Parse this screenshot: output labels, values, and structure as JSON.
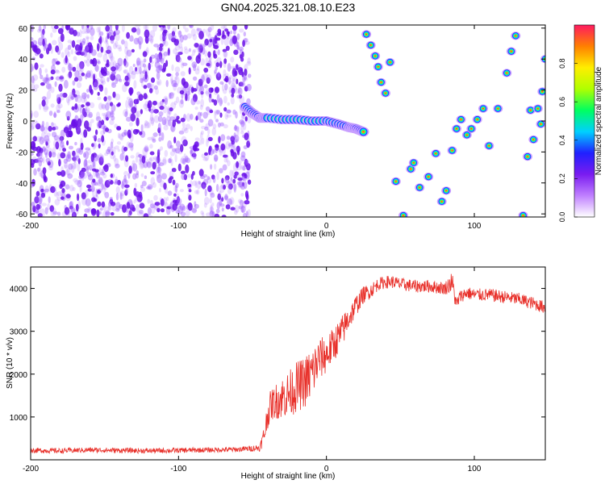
{
  "title": "GN04.2025.321.08.10.E23",
  "colors": {
    "noise": "#7a2cf0",
    "snr_line": "#e8302a",
    "frame": "#000000"
  },
  "chart_data": [
    {
      "type": "heatmap",
      "xlabel": "Height of straight line (km)",
      "ylabel": "Frequency (Hz)",
      "xlim": [
        -200,
        148
      ],
      "ylim": [
        -62,
        62
      ],
      "x_ticks": [
        -200,
        -100,
        0,
        100
      ],
      "y_ticks": [
        -60,
        -40,
        -20,
        0,
        20,
        40,
        60
      ],
      "colorbar": {
        "label": "Normalized spectral amplitude",
        "range": [
          0.0,
          1.0
        ],
        "ticks": [
          "0.0",
          "0.2",
          "0.4",
          "0.6",
          "0.8"
        ],
        "colormap": [
          "#ffffff",
          "#c080ff",
          "#7a1cf0",
          "#2020ff",
          "#00d0ff",
          "#00ff60",
          "#b0ff00",
          "#ffee00",
          "#ff8000",
          "#ff1a60"
        ]
      },
      "noise_region_x": [
        -200,
        -52
      ],
      "main_track": [
        {
          "x": -55,
          "y": 9
        },
        {
          "x": -50,
          "y": 5
        },
        {
          "x": -45,
          "y": 2
        },
        {
          "x": -40,
          "y": 2
        },
        {
          "x": -30,
          "y": 1
        },
        {
          "x": -20,
          "y": 1
        },
        {
          "x": -10,
          "y": 0
        },
        {
          "x": 0,
          "y": 0
        },
        {
          "x": 8,
          "y": -2
        },
        {
          "x": 15,
          "y": -4
        },
        {
          "x": 20,
          "y": -5
        },
        {
          "x": 25,
          "y": -7
        }
      ],
      "scattered_blobs": [
        {
          "x": 27,
          "y": 56
        },
        {
          "x": 30,
          "y": 49
        },
        {
          "x": 33,
          "y": 42
        },
        {
          "x": 35,
          "y": 35
        },
        {
          "x": 37,
          "y": 25
        },
        {
          "x": 40,
          "y": 18
        },
        {
          "x": 43,
          "y": 38
        },
        {
          "x": 47,
          "y": -39
        },
        {
          "x": 52,
          "y": -61
        },
        {
          "x": 57,
          "y": -31
        },
        {
          "x": 59,
          "y": -27
        },
        {
          "x": 63,
          "y": -43
        },
        {
          "x": 69,
          "y": -36
        },
        {
          "x": 74,
          "y": -21
        },
        {
          "x": 78,
          "y": -52
        },
        {
          "x": 81,
          "y": -45
        },
        {
          "x": 85,
          "y": -19
        },
        {
          "x": 88,
          "y": -5
        },
        {
          "x": 91,
          "y": 1
        },
        {
          "x": 95,
          "y": -9
        },
        {
          "x": 98,
          "y": -5
        },
        {
          "x": 102,
          "y": 1
        },
        {
          "x": 106,
          "y": 8
        },
        {
          "x": 110,
          "y": -16
        },
        {
          "x": 116,
          "y": 8
        },
        {
          "x": 122,
          "y": 31
        },
        {
          "x": 125,
          "y": 45
        },
        {
          "x": 128,
          "y": 55
        },
        {
          "x": 133,
          "y": -61
        },
        {
          "x": 136,
          "y": -23
        },
        {
          "x": 138,
          "y": 7
        },
        {
          "x": 140,
          "y": -12
        },
        {
          "x": 143,
          "y": 8
        },
        {
          "x": 146,
          "y": 19
        },
        {
          "x": 148,
          "y": 40
        },
        {
          "x": 145,
          "y": -2
        }
      ]
    },
    {
      "type": "line",
      "xlabel": "Height of straight line (km)",
      "ylabel": "SNR (10 * v/v)",
      "xlim": [
        -200,
        148
      ],
      "ylim": [
        0,
        4500
      ],
      "x_ticks": [
        -200,
        -100,
        0,
        100
      ],
      "y_ticks": [
        1000,
        2000,
        3000,
        4000
      ],
      "series": [
        {
          "x": [
            -200,
            -180,
            -160,
            -140,
            -120,
            -100,
            -80,
            -60,
            -45,
            -42,
            -40,
            -38,
            -35,
            -30,
            -25,
            -20,
            -15,
            -10,
            -5,
            0,
            5,
            10,
            15,
            20,
            25,
            30,
            35,
            40,
            45,
            50,
            60,
            70,
            80,
            85,
            88,
            90,
            95,
            100,
            110,
            120,
            130,
            140,
            148
          ],
          "y": [
            220,
            210,
            230,
            220,
            210,
            220,
            230,
            240,
            280,
            600,
            1000,
            1250,
            1350,
            1450,
            1550,
            1700,
            1800,
            2000,
            2350,
            2450,
            2700,
            2950,
            3300,
            3600,
            3850,
            3950,
            4100,
            4150,
            4150,
            4100,
            4050,
            4050,
            4000,
            4150,
            3600,
            3800,
            3900,
            3850,
            3850,
            3800,
            3750,
            3650,
            3550
          ],
          "noise_amplitude": [
            60,
            60,
            60,
            60,
            60,
            60,
            60,
            60,
            80,
            250,
            300,
            350,
            400,
            500,
            550,
            600,
            600,
            650,
            500,
            450,
            400,
            400,
            300,
            250,
            200,
            180,
            150,
            150,
            150,
            150,
            150,
            150,
            150,
            250,
            180,
            150,
            150,
            150,
            150,
            150,
            150,
            150,
            150
          ]
        }
      ]
    }
  ]
}
